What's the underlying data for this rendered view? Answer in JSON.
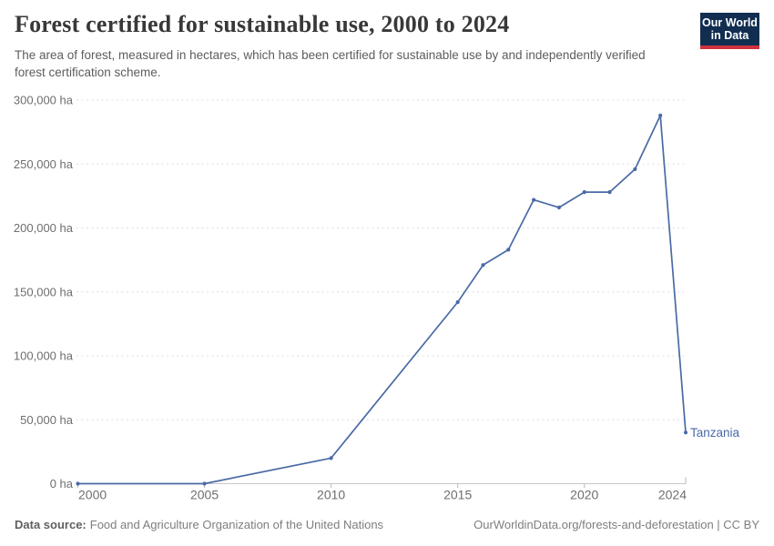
{
  "header": {
    "title": "Forest certified for sustainable use, 2000 to 2024",
    "subtitle": "The area of forest, measured in hectares, which has been certified for sustainable use by and independently verified forest certification scheme.",
    "logo": {
      "line1": "Our World",
      "line2": "in Data",
      "bg_color": "#112e51",
      "accent_color": "#cf323d"
    }
  },
  "chart_data": {
    "type": "line",
    "title": "Forest certified for sustainable use, 2000 to 2024",
    "unit": "ha",
    "x": [
      2000,
      2005,
      2010,
      2015,
      2016,
      2017,
      2018,
      2019,
      2020,
      2021,
      2022,
      2023,
      2024
    ],
    "series": [
      {
        "name": "Tanzania",
        "color": "#4a6aa5",
        "values": [
          0,
          0,
          20000,
          142000,
          171000,
          183000,
          222000,
          216000,
          228000,
          228000,
          246000,
          288000,
          40000
        ]
      }
    ],
    "xlabel": "",
    "ylabel": "",
    "ylim": [
      0,
      300000
    ],
    "ytick_step": 50000,
    "ytick_suffix": " ha",
    "yticks_labels": [
      "0 ha",
      "50,000 ha",
      "100,000 ha",
      "150,000 ha",
      "200,000 ha",
      "250,000 ha",
      "300,000 ha"
    ],
    "xticks": [
      2000,
      2005,
      2010,
      2015,
      2020,
      2024
    ],
    "grid": "horizontal-dashed",
    "legend_position": "end-of-line-label",
    "end_label": "Tanzania"
  },
  "footer": {
    "source_label": "Data source:",
    "source_text": "Food and Agriculture Organization of the United Nations",
    "attribution": "OurWorldinData.org/forests-and-deforestation | CC BY"
  }
}
